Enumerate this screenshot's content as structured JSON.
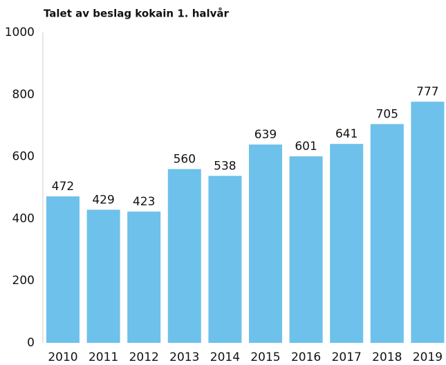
{
  "chart_data": {
    "type": "bar",
    "title": "Talet av beslag kokain 1. halvår",
    "categories": [
      "2010",
      "2011",
      "2012",
      "2013",
      "2014",
      "2015",
      "2016",
      "2017",
      "2018",
      "2019"
    ],
    "values": [
      472,
      429,
      423,
      560,
      538,
      639,
      601,
      641,
      705,
      777
    ],
    "color": "#6ec1ea",
    "ylim": [
      0,
      1000
    ],
    "yticks": [
      0,
      200,
      400,
      600,
      800,
      1000
    ],
    "grid": false
  }
}
